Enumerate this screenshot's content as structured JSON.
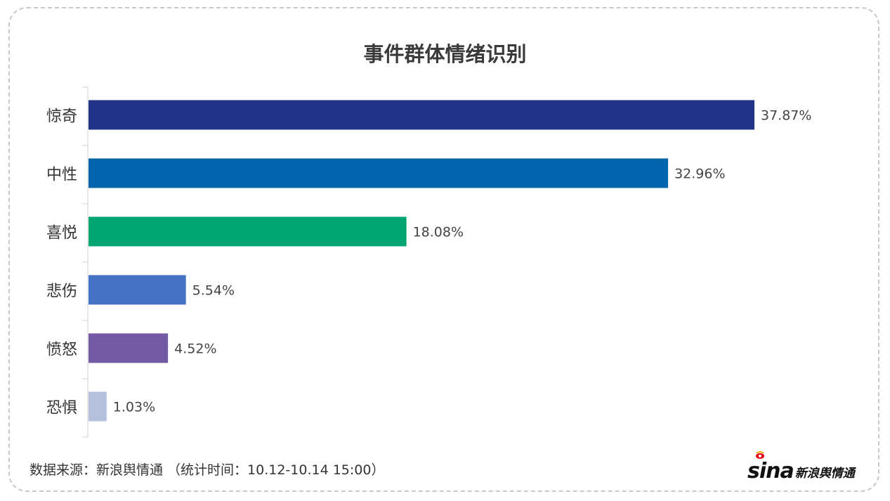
{
  "footer": {
    "source": "数据来源：新浪舆情通 （统计时间：10.12-10.14 15:00）",
    "logo_latin": "sina",
    "logo_cn": "新浪舆情通"
  },
  "chart_data": {
    "type": "bar",
    "orientation": "horizontal",
    "title": "事件群体情绪识别",
    "categories": [
      "惊奇",
      "中性",
      "喜悦",
      "悲伤",
      "愤怒",
      "恐惧"
    ],
    "values": [
      37.87,
      32.96,
      18.08,
      5.54,
      4.52,
      1.03
    ],
    "value_labels": [
      "37.87%",
      "32.96%",
      "18.08%",
      "5.54%",
      "4.52%",
      "1.03%"
    ],
    "colors": [
      "#1f3387",
      "#0065ad",
      "#00a672",
      "#4473c5",
      "#725aa5",
      "#b4c0dc"
    ],
    "xlim": [
      0,
      40
    ],
    "grid": false,
    "legend": "none"
  }
}
